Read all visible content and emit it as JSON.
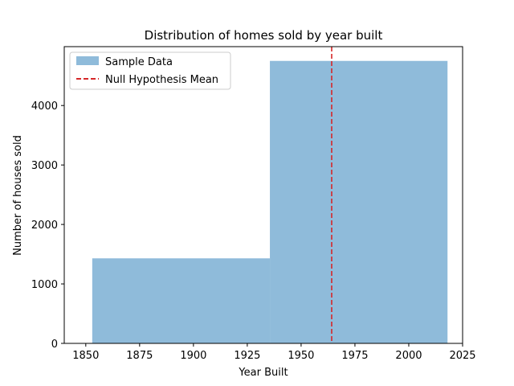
{
  "chart_data": {
    "type": "bar",
    "title": "Distribution of homes sold by year built",
    "xlabel": "Year Built",
    "ylabel": "Number of houses sold",
    "bins": [
      {
        "start": 1853,
        "end": 1935.5,
        "value": 1430
      },
      {
        "start": 1935.5,
        "end": 2018,
        "value": 4750
      }
    ],
    "reference_line": {
      "x": 1964.2,
      "label": "Null Hypothesis Mean",
      "color": "#d62728",
      "style": "dashed"
    },
    "series_name": "Sample Data",
    "bar_color": "#8fbbda",
    "xlim": [
      1840,
      2025
    ],
    "ylim": [
      0,
      4990
    ],
    "xticks": [
      1850,
      1875,
      1900,
      1925,
      1950,
      1975,
      2000,
      2025
    ],
    "yticks": [
      0,
      1000,
      2000,
      3000,
      4000
    ],
    "legend_position": "top-left",
    "grid": false
  }
}
